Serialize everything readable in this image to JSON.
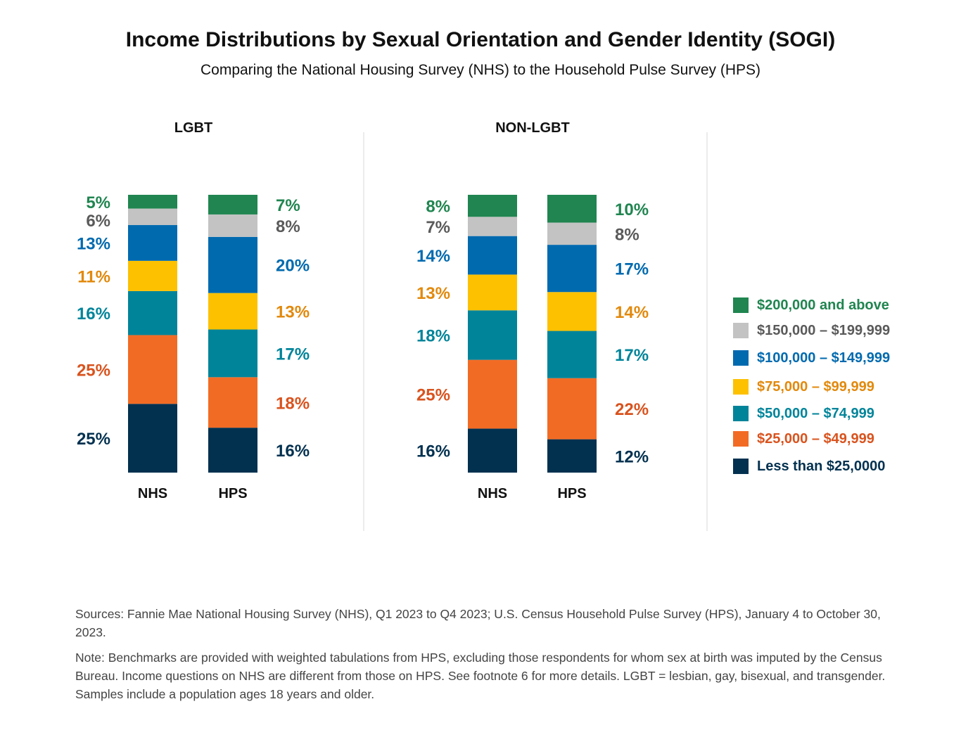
{
  "chart_data": {
    "type": "bar",
    "stacked": true,
    "percent": true,
    "title": "Income Distributions by Sexual Orientation and Gender Identity (SOGI)",
    "subtitle": "Comparing the National Housing Survey (NHS) to the Household Pulse Survey (HPS)",
    "income_brackets": [
      {
        "key": "lt25",
        "label": "Less than $25,0000",
        "color": "#023150",
        "text_color": "#023150"
      },
      {
        "key": "25_50",
        "label": "$25,000 – $49,999",
        "color": "#f26b24",
        "text_color": "#d9531e"
      },
      {
        "key": "50_75",
        "label": "$50,000 – $74,999",
        "color": "#00849a",
        "text_color": "#00849a"
      },
      {
        "key": "75_100",
        "label": "$75,000 – $99,999",
        "color": "#fdc100",
        "text_color": "#e2890c"
      },
      {
        "key": "100_150",
        "label": "$100,000 – $149,999",
        "color": "#006aaf",
        "text_color": "#006aaf"
      },
      {
        "key": "150_200",
        "label": "$150,000 – $199,999",
        "color": "#c3c3c3",
        "text_color": "#5a5a5a"
      },
      {
        "key": "200plus",
        "label": "$200,000 and above",
        "color": "#208550",
        "text_color": "#208550"
      }
    ],
    "groups": [
      {
        "name": "LGBT",
        "bars": [
          {
            "name": "NHS",
            "values": [
              25,
              25,
              16,
              11,
              13,
              6,
              5
            ],
            "labels": [
              "25%",
              "25%",
              "16%",
              "11%",
              "13%",
              "6%",
              "5%"
            ]
          },
          {
            "name": "HPS",
            "values": [
              16,
              18,
              17,
              13,
              20,
              8,
              7
            ],
            "labels": [
              "16%",
              "18%",
              "17%",
              "13%",
              "20%",
              "8%",
              "7%"
            ]
          }
        ]
      },
      {
        "name": "NON-LGBT",
        "bars": [
          {
            "name": "NHS",
            "values": [
              16,
              25,
              18,
              13,
              14,
              7,
              8
            ],
            "labels": [
              "16%",
              "25%",
              "18%",
              "13%",
              "14%",
              "7%",
              "8%"
            ]
          },
          {
            "name": "HPS",
            "values": [
              12,
              22,
              17,
              14,
              17,
              8,
              10
            ],
            "labels": [
              "12%",
              "22%",
              "17%",
              "14%",
              "17%",
              "8%",
              "10%"
            ]
          }
        ]
      }
    ],
    "legend_position": "right"
  },
  "legend_order": [
    "$200,000 and above",
    "$150,000 – $199,999",
    "$100,000 – $149,999",
    "$75,000 – $99,999",
    "$50,000 – $74,999",
    "$25,000 – $49,999",
    "Less than $25,0000"
  ],
  "sources": "Sources: Fannie Mae National Housing Survey (NHS), Q1 2023 to Q4 2023; U.S. Census Household Pulse Survey (HPS), January 4 to October 30, 2023.",
  "note": "Note: Benchmarks are provided with weighted tabulations from HPS, excluding those respondents for whom sex at birth was imputed by the Census Bureau. Income questions on NHS are different from those on HPS. See footnote 6 for more details. LGBT = lesbian, gay, bisexual, and transgender. Samples include a population ages 18 years and older."
}
